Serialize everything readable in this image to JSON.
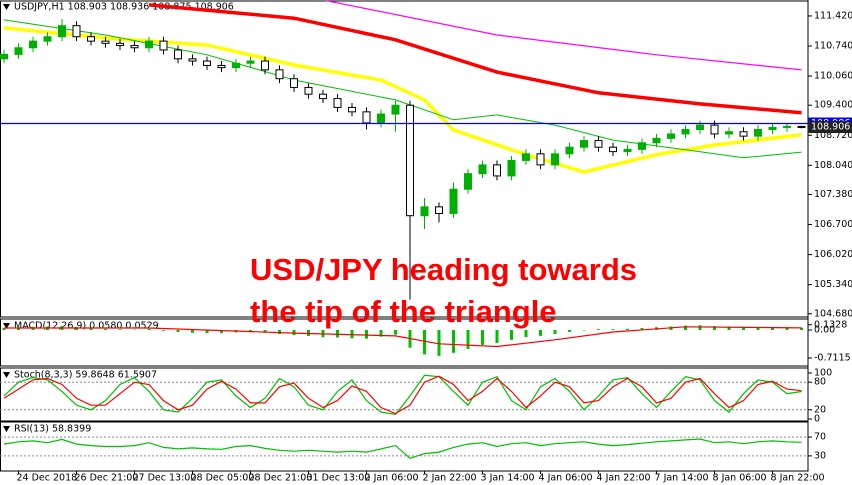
{
  "chart_data": [
    {
      "type": "candlestick",
      "title": "USDJPY,H1  108.903 108.936 108.875 108.906",
      "categories": [
        null,
        "24 Dec 2018",
        null,
        null,
        null,
        "26 Dec 21:00",
        null,
        null,
        null,
        "27 Dec 13:00",
        null,
        null,
        null,
        "28 Dec 05:00",
        null,
        null,
        null,
        "28 Dec 21:00",
        null,
        null,
        null,
        "31 Dec 13:00",
        null,
        null,
        null,
        "2 Jan 06:00",
        null,
        null,
        null,
        "2 Jan 22:00",
        null,
        null,
        null,
        "3 Jan 14:00",
        null,
        null,
        null,
        "4 Jan 06:00",
        null,
        null,
        null,
        "4 Jan 22:00",
        null,
        null,
        null,
        "7 Jan 14:00",
        null,
        null,
        null,
        "8 Jan 06:00",
        null,
        null,
        null,
        "8 Jan 22:00",
        null,
        null
      ],
      "open": [
        110.45,
        110.55,
        110.7,
        110.85,
        110.95,
        111.2,
        110.95,
        110.85,
        110.8,
        110.75,
        110.7,
        110.85,
        110.65,
        110.45,
        110.4,
        110.3,
        110.25,
        110.35,
        110.4,
        110.2,
        110.0,
        109.8,
        109.65,
        109.55,
        109.35,
        109.25,
        109.0,
        109.2,
        109.4,
        106.9,
        107.1,
        106.95,
        107.5,
        107.85,
        108.05,
        107.8,
        108.15,
        108.3,
        108.05,
        108.3,
        108.45,
        108.6,
        108.45,
        108.35,
        108.4,
        108.55,
        108.65,
        108.75,
        108.85,
        108.95,
        108.75,
        108.8,
        108.7,
        108.85,
        108.9,
        108.92
      ],
      "high": [
        110.65,
        110.8,
        110.95,
        111.05,
        111.35,
        111.3,
        111.05,
        110.95,
        110.9,
        110.85,
        110.95,
        110.95,
        110.75,
        110.55,
        110.5,
        110.4,
        110.45,
        110.5,
        110.5,
        110.3,
        110.1,
        109.9,
        109.75,
        109.65,
        109.45,
        109.35,
        109.3,
        109.5,
        109.5,
        107.3,
        107.2,
        107.65,
        107.95,
        108.15,
        108.15,
        108.25,
        108.4,
        108.4,
        108.4,
        108.55,
        108.7,
        108.7,
        108.55,
        108.5,
        108.65,
        108.75,
        108.85,
        108.95,
        109.05,
        109.05,
        108.9,
        108.9,
        108.95,
        109.0,
        109.0,
        108.936
      ],
      "low": [
        110.35,
        110.45,
        110.6,
        110.75,
        110.85,
        110.85,
        110.75,
        110.7,
        110.65,
        110.6,
        110.6,
        110.55,
        110.35,
        110.3,
        110.2,
        110.15,
        110.15,
        110.25,
        110.1,
        109.9,
        109.7,
        109.55,
        109.45,
        109.25,
        109.15,
        108.85,
        108.9,
        108.8,
        105.0,
        106.6,
        106.75,
        106.85,
        107.4,
        107.75,
        107.7,
        107.7,
        108.05,
        107.95,
        107.95,
        108.2,
        108.35,
        108.35,
        108.25,
        108.25,
        108.3,
        108.45,
        108.55,
        108.65,
        108.75,
        108.65,
        108.65,
        108.6,
        108.6,
        108.75,
        108.8,
        108.875
      ],
      "close": [
        110.55,
        110.7,
        110.85,
        110.95,
        111.2,
        110.95,
        110.85,
        110.8,
        110.75,
        110.7,
        110.85,
        110.65,
        110.45,
        110.4,
        110.3,
        110.25,
        110.35,
        110.4,
        110.2,
        110.0,
        109.8,
        109.65,
        109.55,
        109.35,
        109.25,
        109.0,
        109.2,
        109.4,
        106.9,
        107.1,
        106.95,
        107.5,
        107.85,
        108.05,
        107.8,
        108.15,
        108.3,
        108.05,
        108.3,
        108.45,
        108.6,
        108.45,
        108.35,
        108.4,
        108.55,
        108.65,
        108.75,
        108.85,
        108.95,
        108.75,
        108.8,
        108.7,
        108.85,
        108.9,
        108.92,
        108.906
      ],
      "up_color": "#00b000",
      "down_color": "#000000",
      "overlays": [
        {
          "color": "#ff0000",
          "x": [
            10,
            20,
            27,
            34,
            41,
            48,
            55
          ],
          "values": [
            111.67,
            111.37,
            110.88,
            110.15,
            109.68,
            109.43,
            109.23
          ]
        },
        {
          "color": "#ff00ff",
          "x": [
            22,
            34,
            45,
            55
          ],
          "values": [
            111.78,
            110.99,
            110.54,
            110.2
          ]
        },
        {
          "color": "#ffff00",
          "x": [
            0,
            7,
            14,
            20,
            26,
            29,
            31,
            36,
            40,
            45,
            49,
            55
          ],
          "values": [
            111.15,
            110.92,
            110.76,
            110.31,
            109.97,
            109.52,
            108.84,
            108.28,
            107.89,
            108.28,
            108.5,
            108.73
          ]
        },
        {
          "color": "#00c000",
          "x": [
            0,
            7,
            14,
            20,
            27,
            31,
            34,
            38,
            42,
            47,
            51,
            55
          ],
          "values": [
            111.33,
            110.99,
            110.54,
            109.97,
            109.52,
            109.07,
            109.18,
            108.95,
            108.61,
            108.39,
            108.21,
            108.34
          ]
        }
      ],
      "hlines": [
        {
          "value": 108.986,
          "color": "#0000ff"
        }
      ],
      "last_price": 108.906,
      "annotations": [
        "USD/JPY heading towards",
        "the tip of the triangle"
      ],
      "annotation_color": "#ff0000",
      "ylim": [
        104.63,
        111.6
      ],
      "yticks": [
        {
          "value": 111.42,
          "label": "111.420"
        },
        {
          "value": 110.74,
          "label": "110.740"
        },
        {
          "value": 110.06,
          "label": "110.060"
        },
        {
          "value": 109.4,
          "label": "109.400"
        },
        {
          "value": 108.72,
          "label": "108.720"
        },
        {
          "value": 108.04,
          "label": "108.040"
        },
        {
          "value": 107.38,
          "label": "107.380"
        },
        {
          "value": 106.7,
          "label": "106.700"
        },
        {
          "value": 106.02,
          "label": "106.020"
        },
        {
          "value": 105.34,
          "label": "105.340"
        },
        {
          "value": 104.68,
          "label": "104.680"
        }
      ]
    },
    {
      "type": "macd",
      "title": "MACD(12,26,9) 0.0580 0.0529",
      "values": [
        0.05,
        0.07,
        0.08,
        0.09,
        0.1,
        0.08,
        0.05,
        0.03,
        0.02,
        0.01,
        0.03,
        -0.02,
        -0.05,
        -0.07,
        -0.08,
        -0.08,
        -0.06,
        -0.05,
        -0.07,
        -0.1,
        -0.13,
        -0.15,
        -0.18,
        -0.19,
        -0.21,
        -0.22,
        -0.17,
        -0.12,
        -0.45,
        -0.62,
        -0.66,
        -0.58,
        -0.48,
        -0.38,
        -0.33,
        -0.25,
        -0.18,
        -0.15,
        -0.1,
        -0.05,
        0.0,
        0.02,
        0.02,
        0.03,
        0.05,
        0.07,
        0.09,
        0.11,
        0.12,
        0.1,
        0.09,
        0.08,
        0.07,
        0.06,
        0.06,
        0.058
      ],
      "color": "#00c000",
      "signal": {
        "color": "#ff0000",
        "x": [
          0,
          10,
          20,
          27,
          30,
          34,
          38,
          42,
          47,
          55
        ],
        "values": [
          0.05,
          0.05,
          -0.08,
          -0.15,
          -0.35,
          -0.42,
          -0.25,
          -0.05,
          0.08,
          0.0529
        ]
      },
      "ylim": [
        -0.864,
        0.254
      ],
      "yticks": [
        0.1328,
        {
          "value": 0,
          "label": "0.00"
        },
        -0.7115
      ]
    },
    {
      "type": "line",
      "title": "Stoch(8,3,3) 59.8648 61.5907",
      "series": [
        {
          "color": "#00c000",
          "values": [
            50,
            80,
            90,
            85,
            60,
            30,
            20,
            40,
            75,
            90,
            60,
            20,
            15,
            45,
            80,
            85,
            50,
            25,
            45,
            88,
            70,
            30,
            20,
            60,
            85,
            40,
            15,
            10,
            50,
            95,
            92,
            60,
            30,
            80,
            92,
            40,
            20,
            70,
            88,
            60,
            20,
            50,
            85,
            90,
            55,
            25,
            60,
            92,
            85,
            40,
            15,
            55,
            85,
            80,
            55,
            59.8648
          ]
        },
        {
          "color": "#ff0000",
          "values": [
            45,
            65,
            85,
            88,
            75,
            45,
            30,
            30,
            55,
            80,
            75,
            40,
            20,
            30,
            65,
            82,
            65,
            35,
            35,
            70,
            78,
            45,
            25,
            40,
            72,
            60,
            25,
            12,
            30,
            80,
            93,
            75,
            40,
            60,
            88,
            60,
            25,
            50,
            80,
            70,
            35,
            40,
            70,
            88,
            70,
            35,
            45,
            80,
            88,
            55,
            25,
            40,
            75,
            82,
            65,
            61.5907
          ]
        }
      ],
      "ylim": [
        0,
        100
      ],
      "yticks": [
        100,
        80,
        20,
        0
      ]
    },
    {
      "type": "line",
      "title": "RSI(13) 58.8399",
      "series": [
        {
          "color": "#00c000",
          "values": [
            55,
            60,
            62,
            58,
            65,
            55,
            52,
            50,
            50,
            52,
            58,
            48,
            45,
            47,
            45,
            44,
            50,
            52,
            46,
            42,
            40,
            42,
            40,
            38,
            40,
            38,
            45,
            52,
            25,
            35,
            38,
            48,
            55,
            58,
            50,
            56,
            58,
            52,
            56,
            58,
            60,
            55,
            52,
            54,
            57,
            60,
            62,
            64,
            66,
            58,
            60,
            56,
            60,
            62,
            60,
            58.8399
          ]
        }
      ],
      "ylim": [
        0,
        100
      ],
      "yticks": [
        70,
        30
      ]
    }
  ]
}
